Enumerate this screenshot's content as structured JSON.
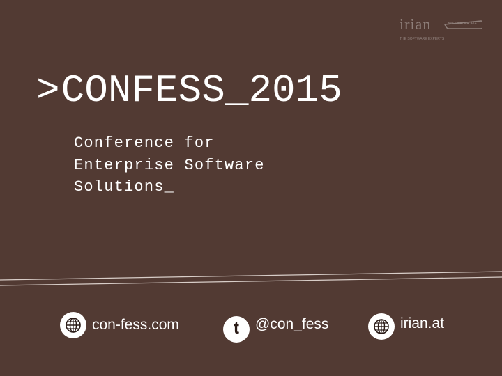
{
  "logo": {
    "wordmark": "irian",
    "tagline": "THE SOFTWARE EXPERTS",
    "badge": "WILLKADER.AT+"
  },
  "title": {
    "prompt": ">",
    "text": "CONFESS_2015"
  },
  "subtitle": {
    "lines": [
      "Conference for",
      "Enterprise Software",
      "Solutions_"
    ]
  },
  "footer": {
    "links": [
      {
        "icon": "globe-icon",
        "label": "con-fess.com"
      },
      {
        "icon": "twitter-icon",
        "label": "@con_fess"
      },
      {
        "icon": "globe-icon",
        "label": "irian.at"
      }
    ]
  },
  "colors": {
    "background": "#523a33",
    "text": "#ffffff",
    "icon_glyph": "#2a1b17"
  }
}
